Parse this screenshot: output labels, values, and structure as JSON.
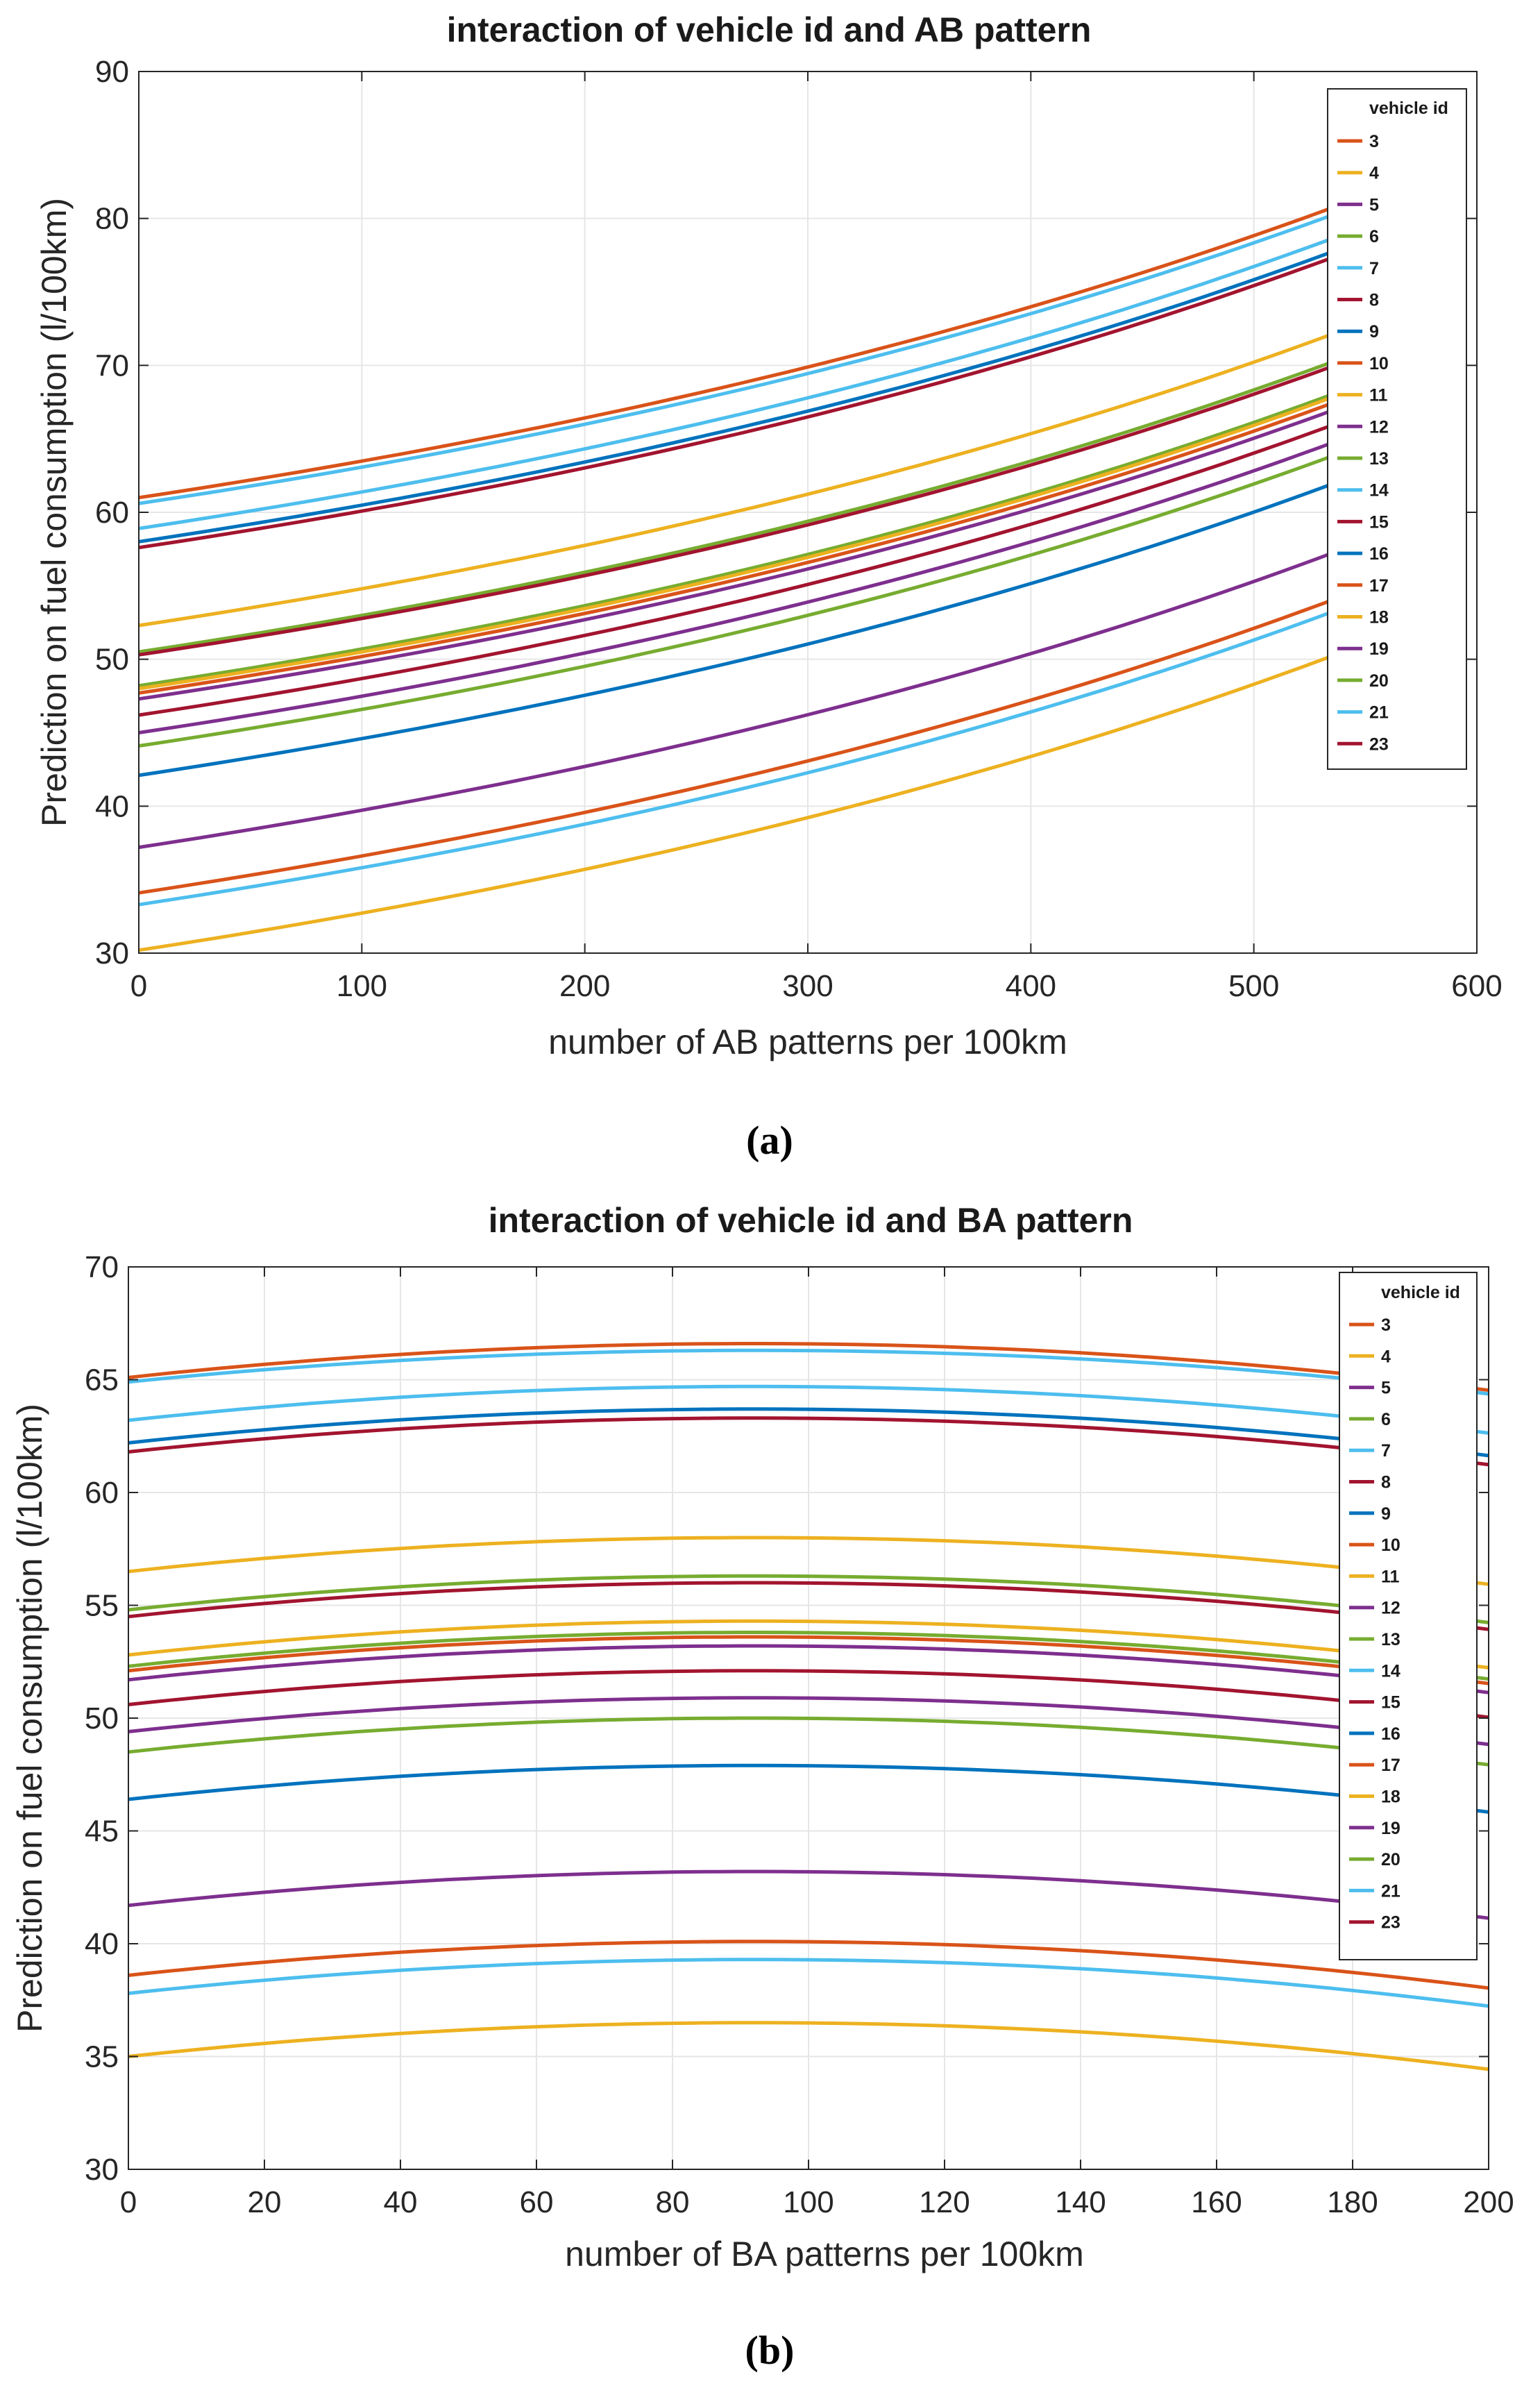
{
  "chart_data": [
    {
      "type": "line",
      "title": "interaction of vehicle id and AB pattern",
      "caption": "(a)",
      "xlabel": "number of AB patterns per 100km",
      "ylabel": "Prediction on fuel consumption (l/100km)",
      "xlim": [
        0,
        600
      ],
      "ylim": [
        30,
        90
      ],
      "xticks": [
        "0",
        "100",
        "200",
        "300",
        "400",
        "500",
        "600"
      ],
      "yticks": [
        "30",
        "40",
        "50",
        "60",
        "70",
        "80",
        "90"
      ],
      "grid": true,
      "legend_title": "vehicle id",
      "legend_position": "top-right",
      "x_end": 540,
      "series": [
        {
          "name": "3",
          "color": "#D95319",
          "start": 61.0,
          "end": 81.0
        },
        {
          "name": "4",
          "color": "#EDB120",
          "start": 30.2,
          "end": 50.5
        },
        {
          "name": "5",
          "color": "#7E2F8E",
          "start": 37.2,
          "end": 57.5
        },
        {
          "name": "6",
          "color": "#77AC30",
          "start": 50.5,
          "end": 70.5
        },
        {
          "name": "7",
          "color": "#4DBEEE",
          "start": 60.6,
          "end": 80.5
        },
        {
          "name": "8",
          "color": "#A2142F",
          "start": 46.2,
          "end": 66.2
        },
        {
          "name": "9",
          "color": "#0072BD",
          "start": 58.0,
          "end": 78.0
        },
        {
          "name": "10",
          "color": "#D95319",
          "start": 34.1,
          "end": 54.3
        },
        {
          "name": "11",
          "color": "#EDB120",
          "start": 52.3,
          "end": 72.4
        },
        {
          "name": "12",
          "color": "#7E2F8E",
          "start": 47.3,
          "end": 67.2
        },
        {
          "name": "13",
          "color": "#77AC30",
          "start": 48.2,
          "end": 68.3
        },
        {
          "name": "14",
          "color": "#4DBEEE",
          "start": 58.9,
          "end": 78.9
        },
        {
          "name": "15",
          "color": "#A2142F",
          "start": 50.3,
          "end": 70.2
        },
        {
          "name": "16",
          "color": "#0072BD",
          "start": 42.1,
          "end": 62.2
        },
        {
          "name": "17",
          "color": "#D95319",
          "start": 47.7,
          "end": 67.7
        },
        {
          "name": "18",
          "color": "#EDB120",
          "start": 48.0,
          "end": 68.1
        },
        {
          "name": "19",
          "color": "#7E2F8E",
          "start": 45.0,
          "end": 65.0
        },
        {
          "name": "20",
          "color": "#77AC30",
          "start": 44.1,
          "end": 64.1
        },
        {
          "name": "21",
          "color": "#4DBEEE",
          "start": 33.3,
          "end": 53.5
        },
        {
          "name": "23",
          "color": "#A2142F",
          "start": 57.6,
          "end": 77.6
        }
      ]
    },
    {
      "type": "line",
      "title": "interaction of vehicle id and BA pattern",
      "caption": "(b)",
      "xlabel": "number of BA patterns per 100km",
      "ylabel": "Prediction on fuel consumption (l/100km)",
      "xlim": [
        0,
        200
      ],
      "ylim": [
        30,
        70
      ],
      "xticks": [
        "0",
        "20",
        "40",
        "60",
        "80",
        "100",
        "120",
        "140",
        "160",
        "180",
        "200"
      ],
      "yticks": [
        "30",
        "35",
        "40",
        "45",
        "50",
        "55",
        "60",
        "65",
        "70"
      ],
      "grid": true,
      "legend_title": "vehicle id",
      "legend_position": "top-right",
      "peak_x": 92,
      "series": [
        {
          "name": "3",
          "color": "#D95319",
          "start": 65.1,
          "peak": 66.6
        },
        {
          "name": "4",
          "color": "#EDB120",
          "start": 35.0,
          "peak": 36.5
        },
        {
          "name": "5",
          "color": "#7E2F8E",
          "start": 41.7,
          "peak": 43.2
        },
        {
          "name": "6",
          "color": "#77AC30",
          "start": 54.8,
          "peak": 56.3
        },
        {
          "name": "7",
          "color": "#4DBEEE",
          "start": 64.9,
          "peak": 66.3
        },
        {
          "name": "8",
          "color": "#A2142F",
          "start": 50.6,
          "peak": 52.1
        },
        {
          "name": "9",
          "color": "#0072BD",
          "start": 62.2,
          "peak": 63.7
        },
        {
          "name": "10",
          "color": "#D95319",
          "start": 38.6,
          "peak": 40.1
        },
        {
          "name": "11",
          "color": "#EDB120",
          "start": 56.5,
          "peak": 58.0
        },
        {
          "name": "12",
          "color": "#7E2F8E",
          "start": 51.7,
          "peak": 53.2
        },
        {
          "name": "13",
          "color": "#77AC30",
          "start": 52.3,
          "peak": 53.8
        },
        {
          "name": "14",
          "color": "#4DBEEE",
          "start": 63.2,
          "peak": 64.7
        },
        {
          "name": "15",
          "color": "#A2142F",
          "start": 54.5,
          "peak": 56.0
        },
        {
          "name": "16",
          "color": "#0072BD",
          "start": 46.4,
          "peak": 47.9
        },
        {
          "name": "17",
          "color": "#D95319",
          "start": 52.1,
          "peak": 53.6
        },
        {
          "name": "18",
          "color": "#EDB120",
          "start": 52.8,
          "peak": 54.3
        },
        {
          "name": "19",
          "color": "#7E2F8E",
          "start": 49.4,
          "peak": 50.9
        },
        {
          "name": "20",
          "color": "#77AC30",
          "start": 48.5,
          "peak": 50.0
        },
        {
          "name": "21",
          "color": "#4DBEEE",
          "start": 37.8,
          "peak": 39.3
        },
        {
          "name": "23",
          "color": "#A2142F",
          "start": 61.8,
          "peak": 63.3
        }
      ]
    }
  ]
}
